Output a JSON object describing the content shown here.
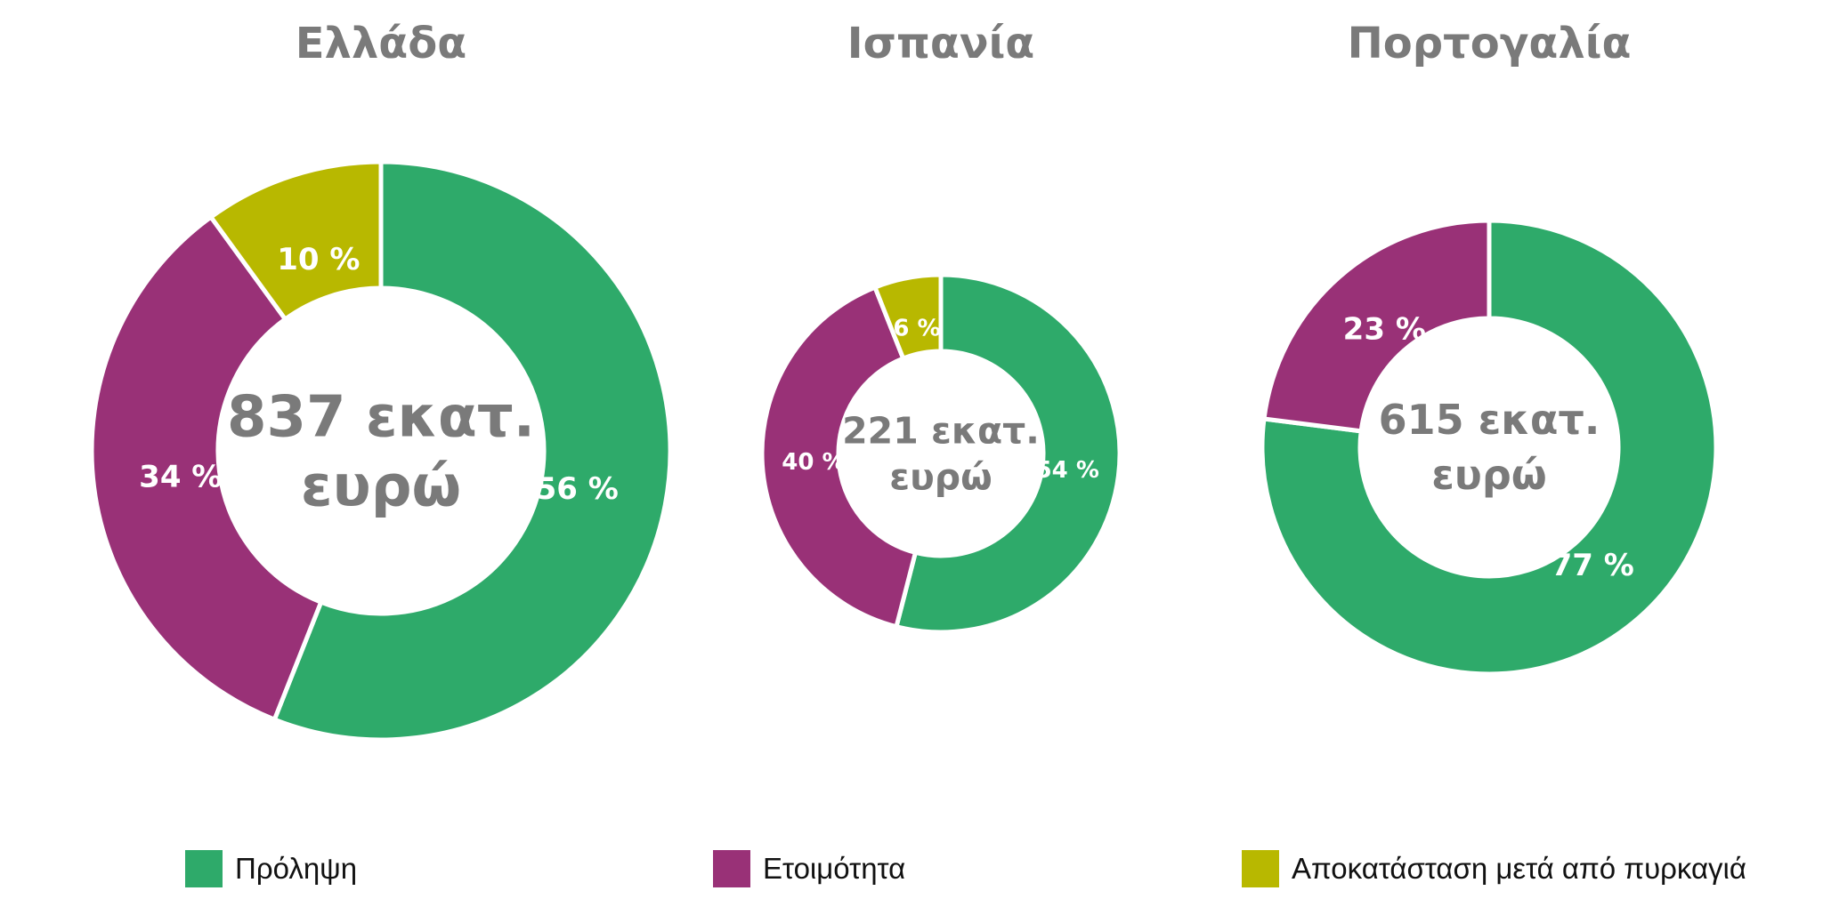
{
  "chart_data": [
    {
      "type": "donut",
      "title": "Ελλάδα",
      "center_text": [
        "837 εκατ.",
        "ευρώ"
      ],
      "categories": [
        "Πρόληψη",
        "Ετοιμότητα",
        "Αποκατάσταση μετά από πυρκαγιά"
      ],
      "values": [
        56,
        34,
        10
      ],
      "labels": [
        "56 %",
        "34 %",
        "10 %"
      ],
      "unit": "%"
    },
    {
      "type": "donut",
      "title": "Ισπανία",
      "center_text": [
        "221 εκατ.",
        "ευρώ"
      ],
      "categories": [
        "Πρόληψη",
        "Ετοιμότητα",
        "Αποκατάσταση μετά από πυρκαγιά"
      ],
      "values": [
        54,
        40,
        6
      ],
      "labels": [
        "54 %",
        "40 %",
        "6 %"
      ],
      "unit": "%"
    },
    {
      "type": "donut",
      "title": "Πορτογαλία",
      "center_text": [
        "615 εκατ.",
        "ευρώ"
      ],
      "categories": [
        "Πρόληψη",
        "Ετοιμότητα"
      ],
      "values": [
        77,
        23
      ],
      "labels": [
        "77 %",
        "23 %"
      ],
      "unit": "%"
    }
  ],
  "legend": [
    {
      "label": "Πρόληψη",
      "color": "#2eaa6a"
    },
    {
      "label": "Ετοιμότητα",
      "color": "#993177"
    },
    {
      "label": "Αποκατάσταση μετά από πυρκαγιά",
      "color": "#b8b800"
    }
  ],
  "colors": {
    "Πρόληψη": "#2eaa6a",
    "Ετοιμότητα": "#993177",
    "Αποκατάσταση μετά από πυρκαγιά": "#b8b800",
    "title_text": "#7a7a7a",
    "center_text": "#7a7a7a",
    "slice_label_text": "#ffffff"
  }
}
